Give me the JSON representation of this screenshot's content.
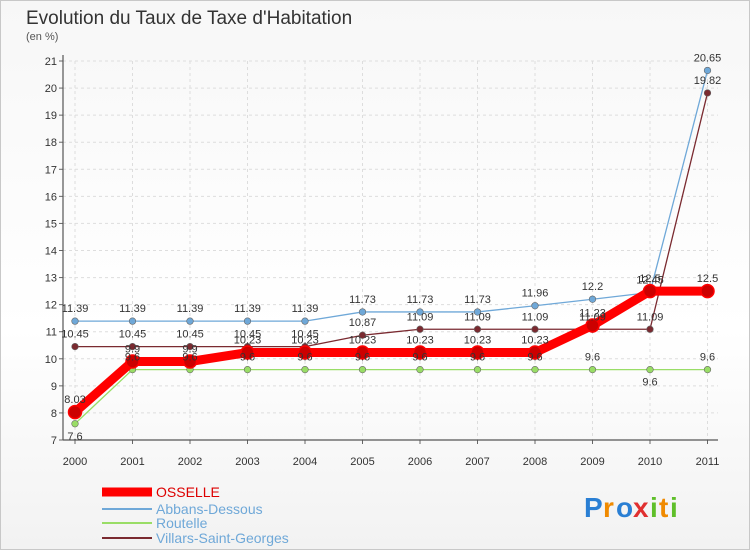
{
  "chart_data": {
    "type": "line",
    "title": "Evolution du Taux de Taxe d'Habitation",
    "subtitle": "(en %)",
    "xlabel": "",
    "ylabel": "",
    "x": [
      "2000",
      "2001",
      "2002",
      "2003",
      "2004",
      "2005",
      "2006",
      "2007",
      "2008",
      "2009",
      "2010",
      "2011"
    ],
    "ylim": [
      7,
      21
    ],
    "yticks": [
      "7",
      "8",
      "9",
      "10",
      "11",
      "12",
      "13",
      "14",
      "15",
      "16",
      "17",
      "18",
      "19",
      "20",
      "21"
    ],
    "grid": true,
    "legend_position": "bottom-left",
    "series": [
      {
        "name": "OSSELLE",
        "color": "#ff0000",
        "values": [
          8.03,
          9.9,
          9.9,
          10.23,
          10.23,
          10.23,
          10.23,
          10.23,
          10.23,
          11.23,
          12.5,
          12.5
        ],
        "labels": [
          "8.03",
          "9.9",
          "9.9",
          "10.23",
          "10.23",
          "10.23",
          "10.23",
          "10.23",
          "10.23",
          "11.23",
          "12.5",
          "12.5"
        ]
      },
      {
        "name": "Abbans-Dessous",
        "color": "#6fa8d8",
        "values": [
          11.39,
          11.39,
          11.39,
          11.39,
          11.39,
          11.73,
          11.73,
          11.73,
          11.96,
          12.2,
          12.45,
          20.65
        ],
        "labels": [
          "11.39",
          "11.39",
          "11.39",
          "11.39",
          "11.39",
          "11.73",
          "11.73",
          "11.73",
          "11.96",
          "12.2",
          "12.45",
          "20.65"
        ]
      },
      {
        "name": "Routelle",
        "color": "#99dd66",
        "values": [
          7.6,
          9.6,
          9.6,
          9.6,
          9.6,
          9.6,
          9.6,
          9.6,
          9.6,
          9.6,
          9.6,
          9.6
        ],
        "labels": [
          "7.6",
          "9.6",
          "9.6",
          "9.6",
          "9.6",
          "9.6",
          "9.6",
          "9.6",
          "9.6",
          "9.6",
          "9.6",
          "9.6"
        ]
      },
      {
        "name": "Villars-Saint-Georges",
        "color": "#7a2a30",
        "values": [
          10.45,
          10.45,
          10.45,
          10.45,
          10.45,
          10.87,
          11.09,
          11.09,
          11.09,
          11.09,
          11.09,
          19.82
        ],
        "labels": [
          "10.45",
          "10.45",
          "10.45",
          "10.45",
          "10.45",
          "10.87",
          "11.09",
          "11.09",
          "11.09",
          "11.09",
          "11.09",
          "19.82"
        ]
      }
    ],
    "label_order": [
      "Routelle",
      "Villars-Saint-Georges",
      "Abbans-Dessous",
      "OSSELLE"
    ],
    "label_offsets_below": {
      "Routelle": [
        0,
        10
      ]
    },
    "label_offsets_above": {
      "Villars-Saint-Georges": [
        1
      ],
      "Abbans-Dessous": [
        2
      ],
      "OSSELLE": [
        3
      ]
    }
  },
  "brand": {
    "name": "Proxiti",
    "letters": [
      "P",
      "r",
      "o",
      "x",
      "i",
      "t",
      "i"
    ],
    "colors": [
      "#2a7fd4",
      "#f08a00",
      "#2a7fd4",
      "#e03030",
      "#5fbf2a",
      "#f08a00",
      "#5fbf2a"
    ]
  }
}
